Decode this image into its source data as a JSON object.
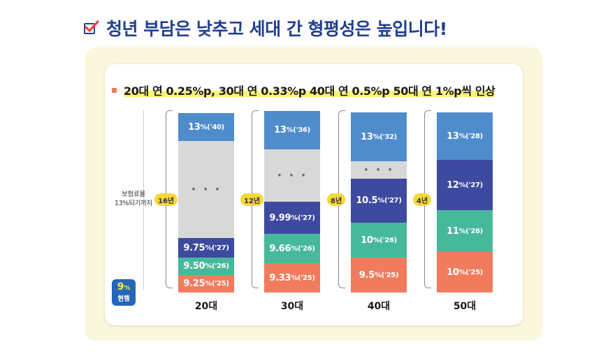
{
  "header": {
    "title": "청년 부담은 낮추고 세대 간 형평성은 높입니다!",
    "subtitle": "20대 연 0.25%p, 30대 연 0.33%p 40대 연 0.5%p 50대 연 1%p씩 인상"
  },
  "ylabel": {
    "line1": "보험료율",
    "line2": "13%되기까지"
  },
  "current_badge": {
    "value": "9",
    "unit": "%",
    "label": "현행"
  },
  "colors": {
    "blue": "#4f8ccc",
    "indigo": "#3e4aa0",
    "teal": "#47b99b",
    "orange": "#f07c5d",
    "gray": "#d8d8d8",
    "badge_yellow": "#f5d83a",
    "title_navy": "#23408f"
  },
  "chart_data": {
    "type": "bar",
    "title": "청년 부담은 낮추고 세대 간 형평성은 높입니다!",
    "subtitle": "20대 연 0.25%p, 30대 연 0.33%p 40대 연 0.5%p 50대 연 1%p씩 인상",
    "ylabel": "보험료율 13%되기까지",
    "categories": [
      "20대",
      "30대",
      "40대",
      "50대"
    ],
    "years_to_13": [
      "16년",
      "12년",
      "8년",
      "4년"
    ],
    "annual_increase_pct_point": [
      0.25,
      0.33,
      0.5,
      1
    ],
    "bars": [
      {
        "category": "20대",
        "years_label": "16년",
        "segments": [
          {
            "value": "9.25",
            "unit": "%",
            "year": "('25)",
            "color": "orange"
          },
          {
            "value": "9.50",
            "unit": "%",
            "year": "('26)",
            "color": "teal"
          },
          {
            "value": "9.75",
            "unit": "%",
            "year": "('27)",
            "color": "indigo"
          },
          {
            "value": "· · ·",
            "unit": "",
            "year": "",
            "color": "gray",
            "gap": true
          },
          {
            "value": "13",
            "unit": "%",
            "year": "('40)",
            "color": "blue"
          }
        ]
      },
      {
        "category": "30대",
        "years_label": "12년",
        "segments": [
          {
            "value": "9.33",
            "unit": "%",
            "year": "('25)",
            "color": "orange"
          },
          {
            "value": "9.66",
            "unit": "%",
            "year": "('26)",
            "color": "teal"
          },
          {
            "value": "9.99",
            "unit": "%",
            "year": "('27)",
            "color": "indigo"
          },
          {
            "value": "· · ·",
            "unit": "",
            "year": "",
            "color": "gray",
            "gap": true
          },
          {
            "value": "13",
            "unit": "%",
            "year": "('36)",
            "color": "blue"
          }
        ]
      },
      {
        "category": "40대",
        "years_label": "8년",
        "segments": [
          {
            "value": "9.5",
            "unit": "%",
            "year": "('25)",
            "color": "orange"
          },
          {
            "value": "10",
            "unit": "%",
            "year": "('26)",
            "color": "teal"
          },
          {
            "value": "10.5",
            "unit": "%",
            "year": "('27)",
            "color": "indigo"
          },
          {
            "value": "· · ·",
            "unit": "",
            "year": "",
            "color": "gray",
            "gap": true
          },
          {
            "value": "13",
            "unit": "%",
            "year": "('32)",
            "color": "blue"
          }
        ]
      },
      {
        "category": "50대",
        "years_label": "4년",
        "segments": [
          {
            "value": "10",
            "unit": "%",
            "year": "('25)",
            "color": "orange"
          },
          {
            "value": "11",
            "unit": "%",
            "year": "('26)",
            "color": "teal"
          },
          {
            "value": "12",
            "unit": "%",
            "year": "('27)",
            "color": "indigo"
          },
          {
            "value": "13",
            "unit": "%",
            "year": "('28)",
            "color": "blue"
          }
        ]
      }
    ]
  }
}
